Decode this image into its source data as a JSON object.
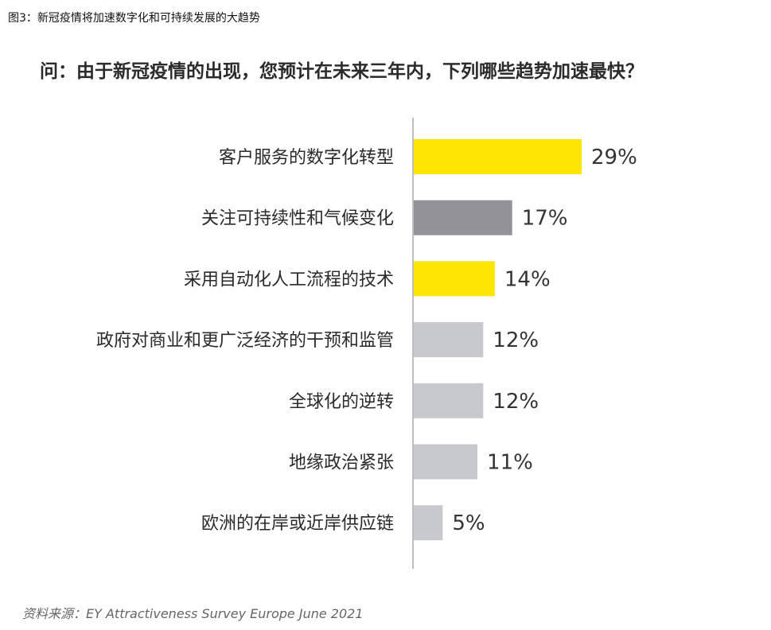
{
  "caption": "图3：新冠疫情将加速数字化和可持续发展的大趋势",
  "source": "资料来源：EY Attractiveness Survey Europe June 2021",
  "colors": {
    "yellow": "#FFE600",
    "dark_gray": "#939397",
    "light_gray": "#C8C9CE",
    "axis": "#bdbdbd"
  },
  "chart_data": {
    "type": "bar",
    "orientation": "horizontal",
    "title": "问：由于新冠疫情的出现，您预计在未来三年内，下列哪些趋势加速最快？",
    "xlabel": "",
    "ylabel": "",
    "xlim": [
      0,
      29
    ],
    "grid": false,
    "categories": [
      "客户服务的数字化转型",
      "关注可持续性和气候变化",
      "采用自动化人工流程的技术",
      "政府对商业和更广泛经济的干预和监管",
      "全球化的逆转",
      "地缘政治紧张",
      "欧洲的在岸或近岸供应链"
    ],
    "values": [
      29,
      17,
      14,
      12,
      12,
      11,
      5
    ],
    "value_labels": [
      "29%",
      "17%",
      "14%",
      "12%",
      "12%",
      "11%",
      "5%"
    ],
    "bar_colors": [
      "yellow",
      "dark_gray",
      "yellow",
      "light_gray",
      "light_gray",
      "light_gray",
      "light_gray"
    ]
  }
}
